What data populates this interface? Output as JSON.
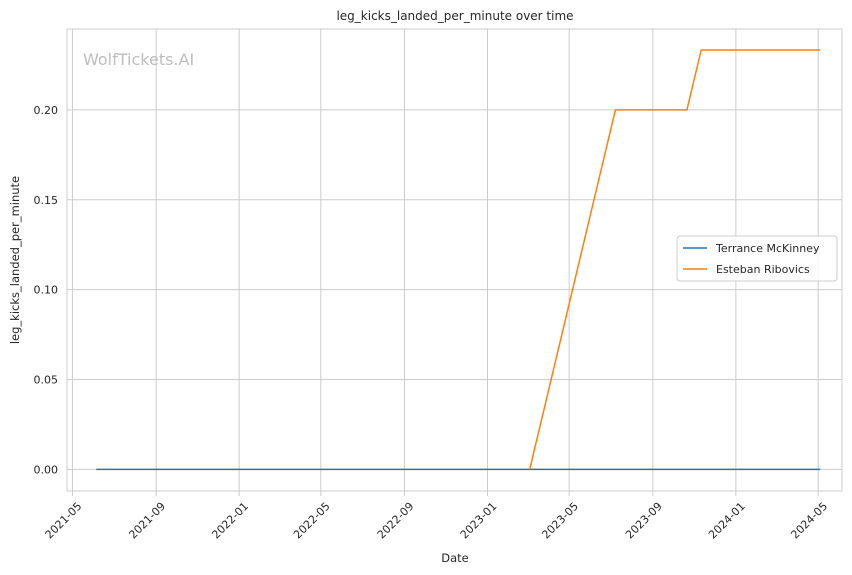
{
  "chart_data": {
    "type": "line",
    "title": "leg_kicks_landed_per_minute over time",
    "xlabel": "Date",
    "ylabel": "leg_kicks_landed_per_minute",
    "watermark": "WolfTickets.AI",
    "x_ticks": [
      "2021-05",
      "2021-09",
      "2022-01",
      "2022-05",
      "2022-09",
      "2023-01",
      "2023-05",
      "2023-09",
      "2024-01",
      "2024-05"
    ],
    "y_ticks": [
      "0.00",
      "0.05",
      "0.10",
      "0.15",
      "0.20"
    ],
    "xlim": [
      "2021-04-23",
      "2024-06-05"
    ],
    "ylim": [
      -0.012,
      0.245
    ],
    "grid": true,
    "legend_position": "center-right",
    "series": [
      {
        "name": "Terrance McKinney",
        "color": "#1f77b4",
        "points": [
          {
            "x": "2021-06-05",
            "y": 0.0
          },
          {
            "x": "2024-05-04",
            "y": 0.0
          }
        ]
      },
      {
        "name": "Esteban Ribovics",
        "color": "#ff7f0e",
        "points": [
          {
            "x": "2023-03-04",
            "y": 0.0
          },
          {
            "x": "2023-07-08",
            "y": 0.2
          },
          {
            "x": "2023-10-21",
            "y": 0.2
          },
          {
            "x": "2023-11-11",
            "y": 0.2333
          },
          {
            "x": "2024-05-04",
            "y": 0.2333
          }
        ]
      }
    ]
  }
}
